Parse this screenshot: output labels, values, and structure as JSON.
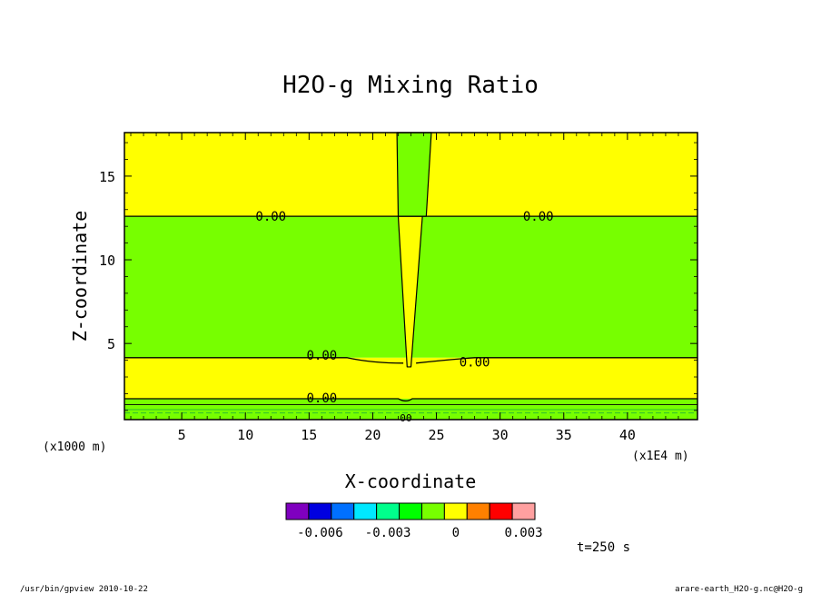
{
  "chart_data": {
    "type": "heatmap",
    "title": "H2O-g Mixing Ratio",
    "xlabel": "X-coordinate",
    "ylabel": "Z-coordinate",
    "x_unit": "(x1E4 m)",
    "y_unit": "(x1000 m)",
    "xlim": [
      0.5,
      45.5
    ],
    "ylim": [
      0.45,
      17.6
    ],
    "x_ticks": [
      5,
      10,
      15,
      20,
      25,
      30,
      35,
      40
    ],
    "y_ticks": [
      5,
      10,
      15
    ],
    "x_tick_labels": [
      "5",
      "10",
      "15",
      "20",
      "25",
      "30",
      "35",
      "40"
    ],
    "y_tick_labels": [
      "5",
      "10",
      "15"
    ],
    "fields": [
      {
        "level": "0 to 0.0005",
        "color": "#FFFF00",
        "z_min": 12.6,
        "z_max": 17.6,
        "x_min": 0.5,
        "x_max": 45.5
      },
      {
        "level": "-0.0005 to 0",
        "color": "#77FF00",
        "z_min": 4.15,
        "z_max": 12.6,
        "x_min": 0.5,
        "x_max": 45.5
      },
      {
        "level": "0 to 0.0005",
        "color": "#FFFF00",
        "z_min": 1.7,
        "z_max": 4.15,
        "x_min": 0.5,
        "x_max": 45.5
      },
      {
        "level": "-0.0005 to 0",
        "color": "#77FF00",
        "z_min": 0.45,
        "z_max": 1.7,
        "x_min": 0.5,
        "x_max": 45.5
      }
    ],
    "column_anomalies": [
      {
        "color": "#77FF00",
        "x_left_top": 21.9,
        "x_right_top": 24.6,
        "x_left_bottom": 22.0,
        "x_right_bottom": 24.2,
        "z_bottom": 12.6,
        "z_top": 17.6
      },
      {
        "color": "#FFFF00",
        "x_left_top": 22.0,
        "x_right_top": 23.9,
        "x_left_bottom": 22.7,
        "x_right_bottom": 23.0,
        "z_bottom": 3.6,
        "z_top": 12.6
      }
    ],
    "contour_labels": [
      {
        "text": "0.00",
        "x": 12.0,
        "z": 12.6
      },
      {
        "text": "0.00",
        "x": 33.0,
        "z": 12.6
      },
      {
        "text": "0.00",
        "x": 16.0,
        "z": 4.3
      },
      {
        "text": "0.00",
        "x": 28.0,
        "z": 3.9
      },
      {
        "text": "0.00",
        "x": 16.0,
        "z": 1.75
      },
      {
        "text": "00",
        "x": 22.6,
        "z": 0.6
      }
    ],
    "colorbar": {
      "colors": [
        "#7F00BF",
        "#0000E0",
        "#0070FF",
        "#00E8FF",
        "#00FF8C",
        "#00FF00",
        "#77FF00",
        "#FFFF00",
        "#FF8000",
        "#FF0000",
        "#FFA0A0"
      ],
      "tick_labels": [
        "-0.006",
        "-0.003",
        "0",
        "0.003"
      ],
      "tick_values": [
        -0.006,
        -0.003,
        0,
        0.003
      ],
      "range": [
        -0.0075,
        0.0035
      ]
    },
    "time_label": "t=250 s"
  },
  "footer": {
    "left": "/usr/bin/gpview  2010-10-22",
    "right": "arare-earth_H2O-g.nc@H2O-g"
  }
}
